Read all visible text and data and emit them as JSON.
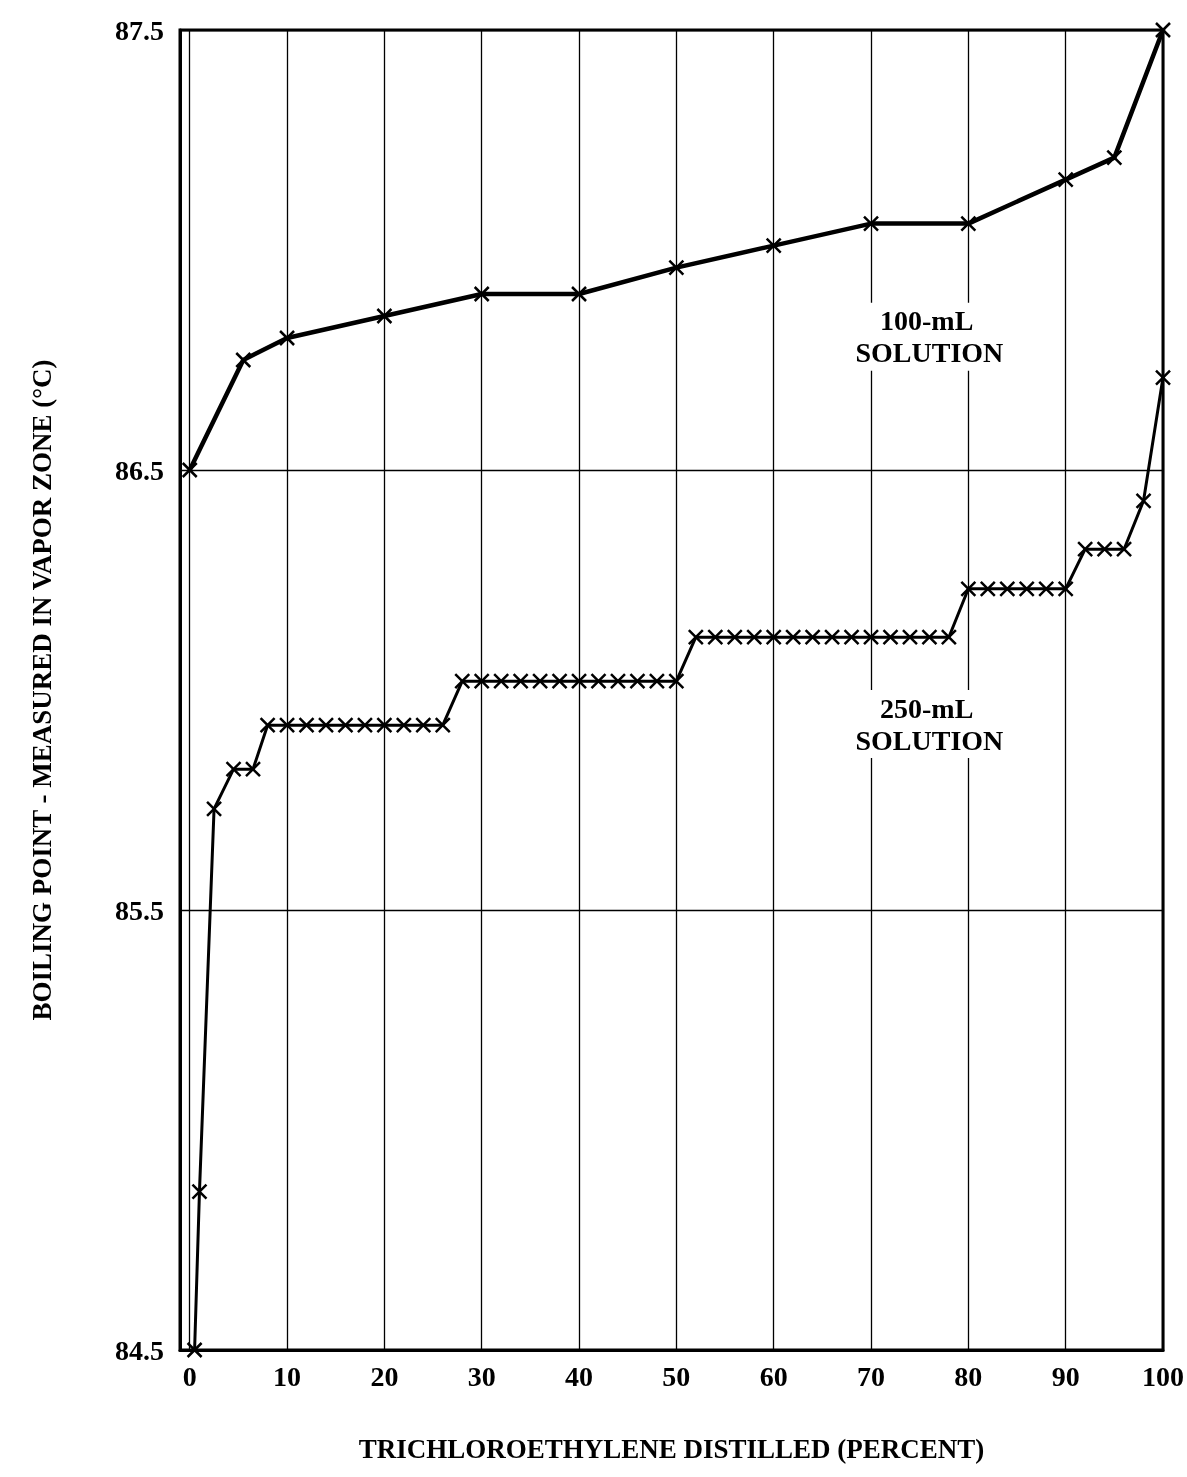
{
  "chart_data": {
    "type": "line",
    "xlabel": "TRICHLOROETHYLENE DISTILLED (PERCENT)",
    "ylabel": "BOILING POINT - MEASURED IN VAPOR ZONE (°C)",
    "xlim": [
      -1,
      100
    ],
    "xticks": [
      0,
      10,
      20,
      30,
      40,
      50,
      60,
      70,
      80,
      90,
      100
    ],
    "ylim": [
      84.5,
      87.5
    ],
    "yticks": [
      84.5,
      85.5,
      86.5,
      87.5
    ],
    "grid": true,
    "legend": false,
    "line_style": "solid",
    "series": [
      {
        "name": "100-mL SOLUTION",
        "color": "#000000",
        "marker": "cross",
        "x": [
          0,
          5.5,
          10,
          20,
          30,
          40,
          50,
          60,
          70,
          80,
          90,
          95,
          100
        ],
        "values": [
          86.5,
          86.75,
          86.8,
          86.85,
          86.9,
          86.9,
          86.96,
          87.01,
          87.06,
          87.06,
          87.16,
          87.21,
          87.5
        ]
      },
      {
        "name": "250-mL SOLUTION",
        "color": "#000000",
        "marker": "cross",
        "x": [
          0.5,
          1,
          2.5,
          4.5,
          6.5,
          8,
          10,
          12,
          14,
          16,
          18,
          20,
          22,
          24,
          26,
          28,
          30,
          32,
          34,
          36,
          38,
          40,
          42,
          44,
          46,
          48,
          50,
          52,
          54,
          56,
          58,
          60,
          62,
          64,
          66,
          68,
          70,
          72,
          74,
          76,
          78,
          80,
          82,
          84,
          86,
          88,
          90,
          92,
          94,
          96,
          98,
          100
        ],
        "values": [
          84.5,
          84.86,
          85.73,
          85.82,
          85.82,
          85.92,
          85.92,
          85.92,
          85.92,
          85.92,
          85.92,
          85.92,
          85.92,
          85.92,
          85.92,
          86.02,
          86.02,
          86.02,
          86.02,
          86.02,
          86.02,
          86.02,
          86.02,
          86.02,
          86.02,
          86.02,
          86.02,
          86.12,
          86.12,
          86.12,
          86.12,
          86.12,
          86.12,
          86.12,
          86.12,
          86.12,
          86.12,
          86.12,
          86.12,
          86.12,
          86.12,
          86.23,
          86.23,
          86.23,
          86.23,
          86.23,
          86.23,
          86.32,
          86.32,
          86.32,
          86.43,
          86.71
        ]
      }
    ]
  }
}
